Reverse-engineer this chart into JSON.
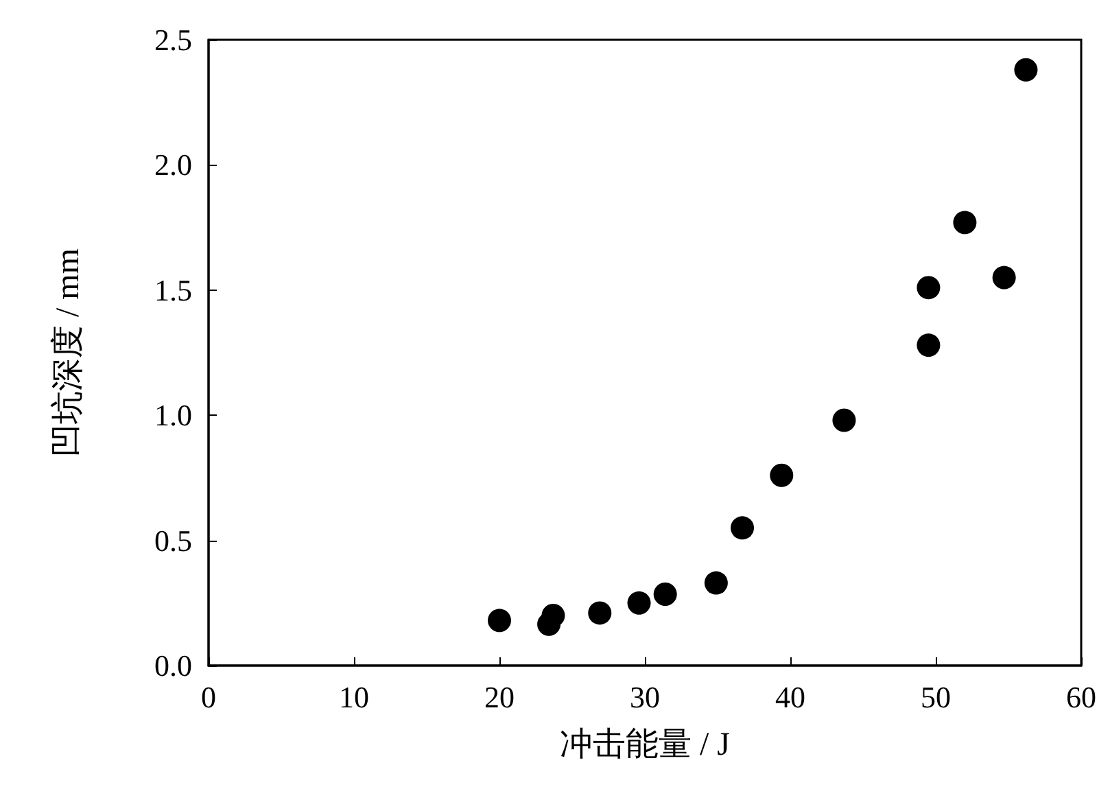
{
  "chart_data": {
    "type": "scatter",
    "xlabel": "冲击能量 / J",
    "ylabel": "凹坑深度 / mm",
    "x": [
      20,
      23.4,
      23.7,
      26.9,
      29.6,
      31.4,
      34.9,
      36.7,
      39.4,
      43.7,
      49.5,
      49.5,
      52,
      54.7,
      56.2
    ],
    "series": [
      {
        "color": "#000000",
        "values": [
          0.18,
          0.165,
          0.2,
          0.21,
          0.25,
          0.285,
          0.33,
          0.55,
          0.76,
          0.98,
          1.51,
          1.28,
          1.77,
          1.55,
          2.38
        ]
      }
    ],
    "xlim": [
      0,
      60
    ],
    "xticks": [
      0,
      10,
      20,
      30,
      40,
      50,
      60
    ],
    "ylim": [
      0,
      2.5
    ],
    "yticks": [
      {
        "value": 0,
        "label": "0.0"
      },
      {
        "value": 0.5,
        "label": "0.5"
      },
      {
        "value": 1,
        "label": "1.0"
      },
      {
        "value": 1.5,
        "label": "1.5"
      },
      {
        "value": 2,
        "label": "2.0"
      },
      {
        "value": 2.5,
        "label": "2.5"
      }
    ],
    "marker": "circle",
    "grid": false
  }
}
